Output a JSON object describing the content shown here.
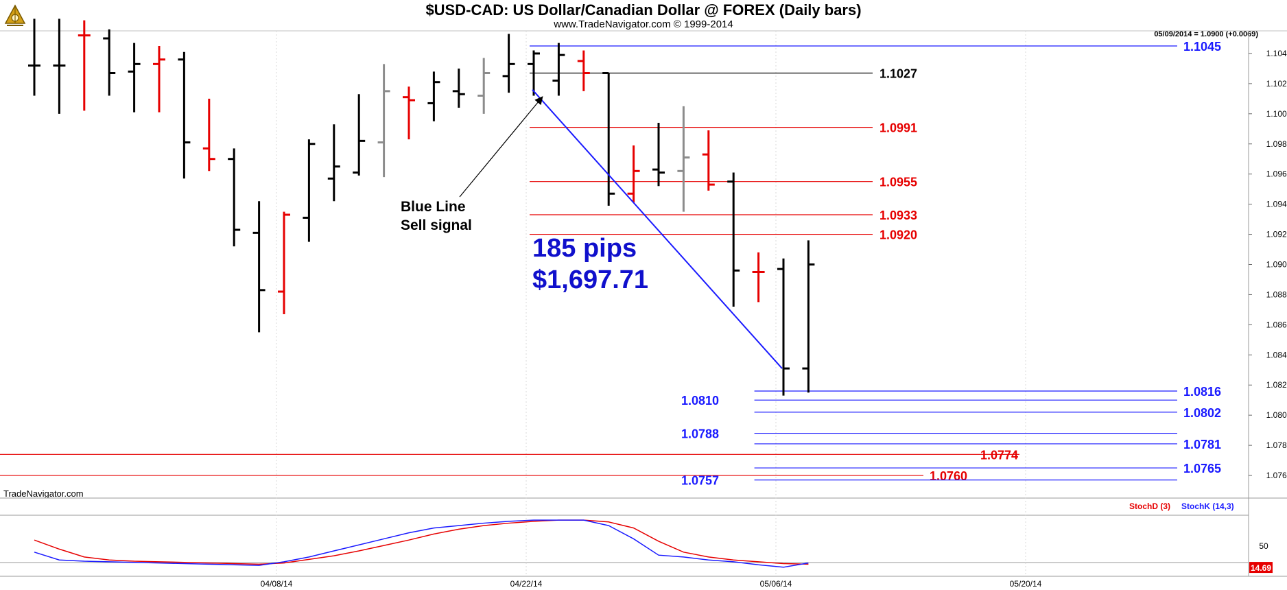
{
  "header": {
    "title": "$USD-CAD:  US Dollar/Canadian Dollar @ FOREX  (Daily bars)",
    "subtitle": "www.TradeNavigator.com © 1999-2014",
    "logo_icon": "sextant-icon"
  },
  "status": {
    "last_bar": "05/09/2014 = 1.0900 (+0.0069)"
  },
  "brand": {
    "label": "TradeNavigator.com"
  },
  "annotations": {
    "sell_signal": [
      "Blue Line",
      "Sell signal"
    ],
    "pips": "185 pips",
    "profit": "$1,697.71"
  },
  "colors": {
    "up_bar": "#000000",
    "down_bar": "#e60000",
    "neutral_bar": "#8c8c8c",
    "blue": "#1a1aff",
    "red": "#e60000",
    "stoch_d": "#e60000",
    "stoch_k": "#1a1aff"
  },
  "chart_data": [
    {
      "type": "ohlc",
      "title": "$USD-CAD:  US Dollar/Canadian Dollar @ FOREX  (Daily bars)",
      "ylim": [
        1.0745,
        1.1055
      ],
      "yticks": [
        "1.1040",
        "1.1020",
        "1.1000",
        "1.0980",
        "1.0960",
        "1.0940",
        "1.0920",
        "1.0900",
        "1.0880",
        "1.0860",
        "1.0840",
        "1.0820",
        "1.0800",
        "1.0780",
        "1.0760"
      ],
      "xticks": [
        {
          "label": "04/08/14",
          "bar": 10
        },
        {
          "label": "04/22/14",
          "bar": 20
        },
        {
          "label": "05/06/14",
          "bar": 30
        },
        {
          "label": "05/20/14",
          "bar": 40
        }
      ],
      "bars": [
        {
          "o": 1.1032,
          "h": 1.1063,
          "l": 1.1012,
          "c": 1.1032,
          "color": "up"
        },
        {
          "o": 1.1032,
          "h": 1.1063,
          "l": 1.1,
          "c": 1.1032,
          "color": "up"
        },
        {
          "o": 1.1052,
          "h": 1.1062,
          "l": 1.1002,
          "c": 1.1052,
          "color": "down"
        },
        {
          "o": 1.105,
          "h": 1.1056,
          "l": 1.1012,
          "c": 1.1027,
          "color": "up"
        },
        {
          "o": 1.1028,
          "h": 1.1047,
          "l": 1.1001,
          "c": 1.1033,
          "color": "up"
        },
        {
          "o": 1.1033,
          "h": 1.1045,
          "l": 1.1001,
          "c": 1.1036,
          "color": "down"
        },
        {
          "o": 1.1036,
          "h": 1.1041,
          "l": 1.0957,
          "c": 1.0981,
          "color": "up"
        },
        {
          "o": 1.0977,
          "h": 1.101,
          "l": 1.0962,
          "c": 1.097,
          "color": "down"
        },
        {
          "o": 1.097,
          "h": 1.0977,
          "l": 1.0912,
          "c": 1.0923,
          "color": "up"
        },
        {
          "o": 1.0921,
          "h": 1.0942,
          "l": 1.0855,
          "c": 1.0883,
          "color": "up"
        },
        {
          "o": 1.0882,
          "h": 1.0935,
          "l": 1.0867,
          "c": 1.0933,
          "color": "down"
        },
        {
          "o": 1.0931,
          "h": 1.0983,
          "l": 1.0915,
          "c": 1.098,
          "color": "up"
        },
        {
          "o": 1.0957,
          "h": 1.0993,
          "l": 1.0942,
          "c": 1.0965,
          "color": "up"
        },
        {
          "o": 1.0961,
          "h": 1.1013,
          "l": 1.0959,
          "c": 1.0982,
          "color": "up"
        },
        {
          "o": 1.0981,
          "h": 1.1033,
          "l": 1.0958,
          "c": 1.1015,
          "color": "neutral"
        },
        {
          "o": 1.1011,
          "h": 1.1018,
          "l": 1.0983,
          "c": 1.1009,
          "color": "down"
        },
        {
          "o": 1.1007,
          "h": 1.1028,
          "l": 1.0995,
          "c": 1.1021,
          "color": "up"
        },
        {
          "o": 1.1015,
          "h": 1.103,
          "l": 1.1004,
          "c": 1.1013,
          "color": "up"
        },
        {
          "o": 1.1012,
          "h": 1.1037,
          "l": 1.1,
          "c": 1.1027,
          "color": "neutral"
        },
        {
          "o": 1.1025,
          "h": 1.1053,
          "l": 1.1014,
          "c": 1.1033,
          "color": "up"
        },
        {
          "o": 1.1033,
          "h": 1.1042,
          "l": 1.1012,
          "c": 1.104,
          "color": "up"
        },
        {
          "o": 1.1022,
          "h": 1.1047,
          "l": 1.1012,
          "c": 1.1039,
          "color": "up"
        },
        {
          "o": 1.1035,
          "h": 1.1042,
          "l": 1.1015,
          "c": 1.1027,
          "color": "down"
        },
        {
          "o": 1.1027,
          "h": 1.1027,
          "l": 1.0939,
          "c": 1.0947,
          "color": "up"
        },
        {
          "o": 1.0947,
          "h": 1.0979,
          "l": 1.0941,
          "c": 1.0962,
          "color": "down"
        },
        {
          "o": 1.0963,
          "h": 1.0994,
          "l": 1.0952,
          "c": 1.0961,
          "color": "up"
        },
        {
          "o": 1.0962,
          "h": 1.1005,
          "l": 1.0935,
          "c": 1.0971,
          "color": "neutral"
        },
        {
          "o": 1.0973,
          "h": 1.0989,
          "l": 1.0949,
          "c": 1.0953,
          "color": "down"
        },
        {
          "o": 1.0955,
          "h": 1.0961,
          "l": 1.0872,
          "c": 1.0896,
          "color": "up"
        },
        {
          "o": 1.0895,
          "h": 1.0908,
          "l": 1.0875,
          "c": 1.0895,
          "color": "down"
        },
        {
          "o": 1.0897,
          "h": 1.0904,
          "l": 1.0813,
          "c": 1.0831,
          "color": "up"
        },
        {
          "o": 1.0831,
          "h": 1.0916,
          "l": 1.0815,
          "c": 1.09,
          "color": "up"
        }
      ],
      "levels": [
        {
          "value": 1.1045,
          "label": "1.1045",
          "color": "blue",
          "from_bar": 20,
          "label_side": "right"
        },
        {
          "value": 1.1027,
          "label": "1.1027",
          "color": "black",
          "from_bar": 20,
          "label_side": "mid"
        },
        {
          "value": 1.0991,
          "label": "1.0991",
          "color": "red",
          "from_bar": 20,
          "label_side": "mid"
        },
        {
          "value": 1.0955,
          "label": "1.0955",
          "color": "red",
          "from_bar": 20,
          "label_side": "mid"
        },
        {
          "value": 1.0933,
          "label": "1.0933",
          "color": "red",
          "from_bar": 20,
          "label_side": "mid"
        },
        {
          "value": 1.092,
          "label": "1.0920",
          "color": "red",
          "from_bar": 20,
          "label_side": "mid"
        },
        {
          "value": 1.0816,
          "label": "1.0816",
          "color": "blue",
          "from_bar": 29,
          "label_side": "right"
        },
        {
          "value": 1.081,
          "label": "1.0810",
          "color": "blue",
          "from_bar": 29,
          "label_side": "left"
        },
        {
          "value": 1.0802,
          "label": "1.0802",
          "color": "blue",
          "from_bar": 29,
          "label_side": "right"
        },
        {
          "value": 1.0788,
          "label": "1.0788",
          "color": "blue",
          "from_bar": 29,
          "label_side": "left"
        },
        {
          "value": 1.0781,
          "label": "1.0781",
          "color": "blue",
          "from_bar": 29,
          "label_side": "right"
        },
        {
          "value": 1.0774,
          "label": "1.0774",
          "color": "red",
          "from_bar": -1,
          "label_side": "mid2"
        },
        {
          "value": 1.0765,
          "label": "1.0765",
          "color": "blue",
          "from_bar": 29,
          "label_side": "right"
        },
        {
          "value": 1.076,
          "label": "1.0760",
          "color": "red",
          "from_bar": -1,
          "label_side": "mid3"
        },
        {
          "value": 1.0757,
          "label": "1.0757",
          "color": "blue",
          "from_bar": 29,
          "label_side": "left"
        }
      ],
      "trendline": {
        "from": {
          "bar": 20,
          "value": 1.1016
        },
        "to": {
          "bar": 30,
          "value": 1.0831
        },
        "color": "blue"
      }
    },
    {
      "type": "line",
      "title": "",
      "legend": [
        "StochD (3)",
        "StochK (14,3)"
      ],
      "ylim": [
        0,
        100
      ],
      "yticks": [
        "50"
      ],
      "last_value": "14.69",
      "series": [
        {
          "name": "StochD (3)",
          "values": [
            60,
            45,
            32,
            27,
            25,
            24,
            23,
            22,
            21,
            20,
            22,
            28,
            34,
            42,
            51,
            60,
            70,
            78,
            84,
            88,
            91,
            93,
            93,
            90,
            80,
            58,
            40,
            32,
            27,
            24,
            21,
            20
          ]
        },
        {
          "name": "StochK (14,3)",
          "values": [
            40,
            27,
            25,
            24,
            23,
            22,
            21,
            20,
            19,
            18,
            24,
            32,
            42,
            52,
            62,
            72,
            80,
            84,
            88,
            91,
            93,
            93,
            93,
            84,
            62,
            35,
            32,
            27,
            24,
            19,
            15,
            22
          ]
        }
      ]
    }
  ]
}
